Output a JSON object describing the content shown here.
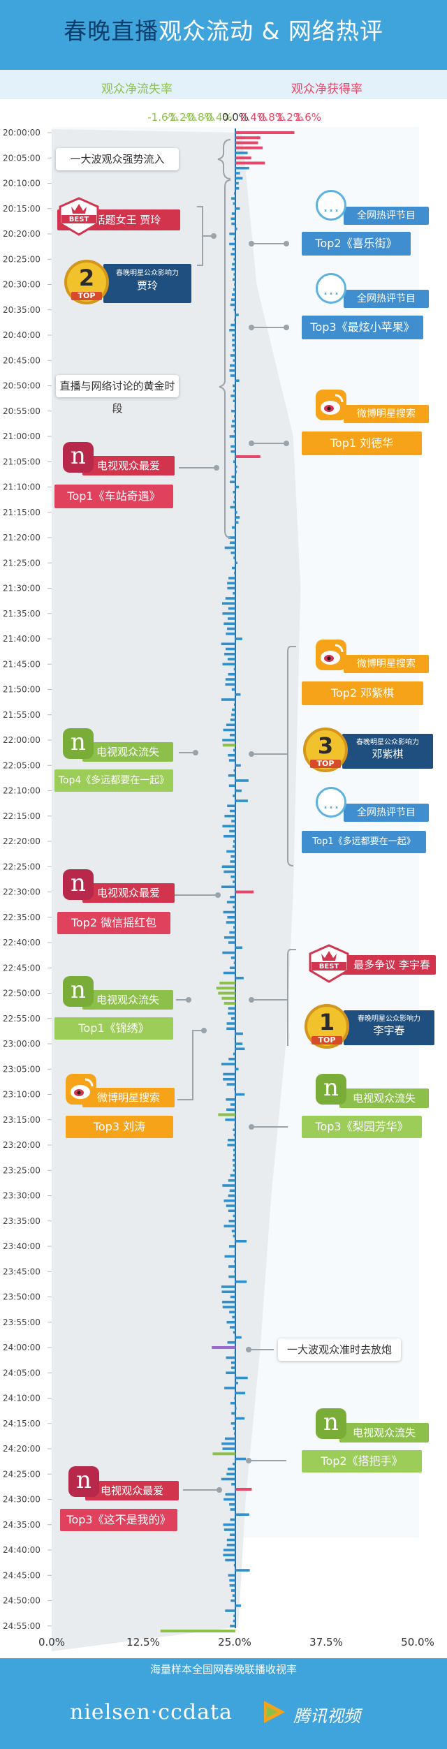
{
  "title": {
    "part1": "春晚直播",
    "part2": "观众流动 & 网络热评"
  },
  "legend": {
    "loss": "观众净流失率",
    "gain": "观众净获得率"
  },
  "footer_note": "海量样本全国网春晚联播收视率",
  "logos": {
    "nielsen": "nielsen·ccdata",
    "tencent": "腾讯视频"
  },
  "colors": {
    "title_bg": "#3fa4dc",
    "loss": "#8dc04a",
    "gain": "#e64768",
    "bar": "#2e8fcb",
    "purple": "#9a6ad2",
    "red_tag": "#d2334d",
    "blue_tag": "#3f8fd0",
    "orange_tag": "#f6a319",
    "green_tag": "#8dc04a"
  },
  "callouts": {
    "c1": "一大波观众强势流入",
    "c2": "直播与网络讨论的黄金时段",
    "c3": "一大波观众准时去放炮"
  },
  "left_items": [
    {
      "tag": "话题女王 贾玲",
      "icon": "best-badge"
    },
    {
      "rank": "2",
      "top": "TOP",
      "tag": "春晚明星公众影响力",
      "sub": "贾玲"
    },
    {
      "icon": "nielsen-n-icon",
      "tag": "电视观众最爱",
      "sub": "Top1《车站奇遇》"
    },
    {
      "icon": "nielsen-n-icon",
      "tag": "电视观众流失",
      "sub": "Top4《多远都要在一起》"
    },
    {
      "icon": "nielsen-n-icon",
      "tag": "电视观众最爱",
      "sub": "Top2 微信摇红包"
    },
    {
      "icon": "nielsen-n-icon",
      "tag": "电视观众流失",
      "sub": "Top1《锦绣》"
    },
    {
      "icon": "weibo-icon",
      "tag": "微博明星搜索",
      "sub": "Top3 刘涛"
    },
    {
      "icon": "nielsen-n-icon",
      "tag": "电视观众最爱",
      "sub": "Top3《这不是我的》"
    }
  ],
  "right_items": [
    {
      "icon": "chat-bubble-icon",
      "tag": "全网热评节目",
      "sub": "Top2《喜乐街》"
    },
    {
      "icon": "chat-bubble-icon",
      "tag": "全网热评节目",
      "sub": "Top3《最炫小苹果》"
    },
    {
      "icon": "weibo-icon",
      "tag": "微博明星搜索",
      "sub": "Top1 刘德华"
    },
    {
      "icon": "weibo-icon",
      "tag": "微博明星搜索",
      "sub": "Top2 邓紫棋"
    },
    {
      "rank": "3",
      "top": "TOP",
      "tag": "春晚明星公众影响力",
      "sub": "邓紫棋"
    },
    {
      "icon": "chat-bubble-icon",
      "tag": "全网热评节目",
      "sub": "Top1《多远都要在一起》"
    },
    {
      "tag": "最多争议 李宇春",
      "icon": "best-badge"
    },
    {
      "rank": "1",
      "top": "TOP",
      "tag": "春晚明星公众影响力",
      "sub": "李宇春"
    },
    {
      "icon": "nielsen-n-icon",
      "tag": "电视观众流失",
      "sub": "Top3《梨园芳华》"
    },
    {
      "icon": "nielsen-n-icon",
      "tag": "电视观众流失",
      "sub": "Top2《搭把手》"
    }
  ],
  "best_text": "BEST",
  "chart_data": {
    "type": "bar",
    "top_axis": {
      "label_left": "观众净流失率",
      "label_right": "观众净获得率",
      "range": [
        -1.6,
        1.6
      ],
      "ticks": [
        "-1.6%",
        "-1.2%",
        "-0.8%",
        "-0.4%",
        "0.0%",
        "0.4%",
        "0.8%",
        "1.2%",
        "1.6%"
      ],
      "tick_values": [
        -1.6,
        -1.2,
        -0.8,
        -0.4,
        0.0,
        0.4,
        0.8,
        1.2,
        1.6
      ]
    },
    "bottom_axis": {
      "label": "海量样本全国网春晚联播收视率",
      "range": [
        0,
        50
      ],
      "ticks": [
        "0.0%",
        "12.5%",
        "25.0%",
        "37.5%",
        "50.0%"
      ],
      "tick_values": [
        0,
        12.5,
        25,
        37.5,
        50
      ]
    },
    "time_labels": [
      "20:00:00",
      "20:05:00",
      "20:10:00",
      "20:15:00",
      "20:20:00",
      "20:25:00",
      "20:30:00",
      "20:35:00",
      "20:40:00",
      "20:45:00",
      "20:50:00",
      "20:55:00",
      "21:00:00",
      "21:05:00",
      "21:10:00",
      "21:15:00",
      "21:20:00",
      "21:25:00",
      "21:30:00",
      "21:35:00",
      "21:40:00",
      "21:45:00",
      "21:50:00",
      "21:55:00",
      "22:00:00",
      "22:05:00",
      "22:10:00",
      "22:15:00",
      "22:20:00",
      "22:25:00",
      "22:30:00",
      "22:35:00",
      "22:40:00",
      "22:45:00",
      "22:50:00",
      "22:55:00",
      "23:00:00",
      "23:05:00",
      "23:10:00",
      "23:15:00",
      "23:20:00",
      "23:25:00",
      "23:30:00",
      "23:35:00",
      "23:40:00",
      "23:45:00",
      "23:50:00",
      "23:55:00",
      "24:00:00",
      "24:05:00",
      "24:10:00",
      "24:15:00",
      "24:20:00",
      "24:25:00",
      "24:30:00",
      "24:35:00",
      "24:40:00",
      "24:45:00",
      "24:50:00",
      "24:55:00"
    ],
    "series": [
      {
        "name": "观众净获得率",
        "color": "#e64768",
        "points": [
          [
            "20:00",
            1.3
          ],
          [
            "20:01",
            0.55
          ],
          [
            "20:02",
            0.5
          ],
          [
            "20:03",
            0.6
          ],
          [
            "20:05",
            0.35
          ],
          [
            "20:06",
            0.65
          ],
          [
            "21:04",
            0.55
          ],
          [
            "22:30",
            0.4
          ],
          [
            "24:28",
            0.36
          ]
        ]
      },
      {
        "name": "观众净流失率",
        "color": "#8dc04a",
        "points": [
          [
            "22:01",
            -0.28
          ],
          [
            "22:48",
            -0.35
          ],
          [
            "22:49",
            -0.42
          ],
          [
            "22:50",
            -0.38
          ],
          [
            "22:51",
            -0.3
          ],
          [
            "22:52",
            -0.25
          ],
          [
            "23:14",
            -0.38
          ],
          [
            "24:21",
            -0.5
          ],
          [
            "24:56",
            -1.65
          ]
        ]
      },
      {
        "name": "purple",
        "color": "#9a6ad2",
        "points": [
          [
            "24:00",
            -0.52
          ]
        ]
      }
    ],
    "ratings_profile": [
      [
        20.0,
        26
      ],
      [
        20.5,
        28
      ],
      [
        21.0,
        33
      ],
      [
        21.5,
        34
      ],
      [
        22.0,
        33.5
      ],
      [
        22.5,
        33
      ],
      [
        23.0,
        32
      ],
      [
        23.5,
        30
      ],
      [
        24.0,
        28.5
      ],
      [
        24.5,
        26.5
      ],
      [
        24.92,
        25.5
      ]
    ]
  }
}
